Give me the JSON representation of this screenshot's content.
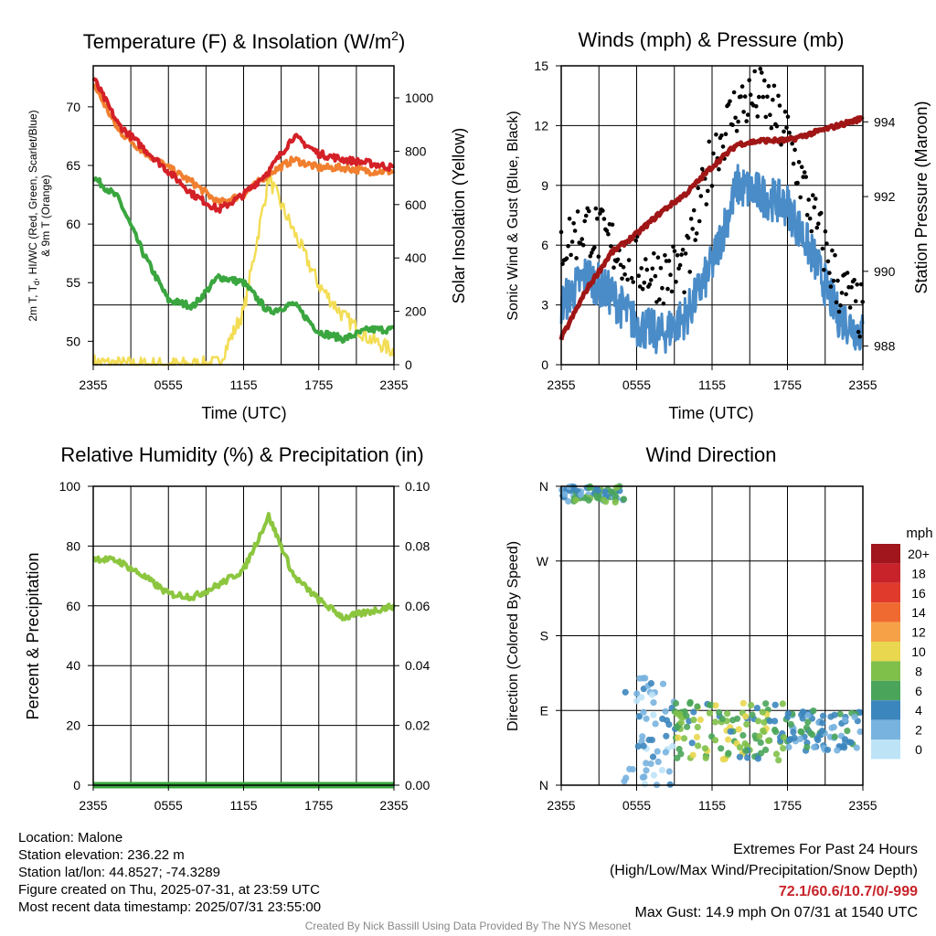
{
  "x_ticks": [
    "2355",
    "0555",
    "1155",
    "1755",
    "2355"
  ],
  "panels": {
    "temp": {
      "title": "Temperature (F) & Insolation (W/m",
      "title_sup": "2",
      "title_end": ")",
      "ylabel_left_line1": "2m T, T",
      "ylabel_left_sub": "d",
      "ylabel_left_line1b": ", HI/WC (Red, Green, Scarlet/Blue)",
      "ylabel_left_line2": "& 9m T (Orange)",
      "ylabel_right": "Solar Insolation (Yellow)",
      "xlabel": "Time (UTC)",
      "yticks_left": [
        "50",
        "55",
        "60",
        "65",
        "70"
      ],
      "yticks_right": [
        "0",
        "200",
        "400",
        "600",
        "800",
        "1000"
      ]
    },
    "wind": {
      "title": "Winds (mph) & Pressure (mb)",
      "ylabel_left": "Sonic Wind & Gust (Blue, Black)",
      "ylabel_right": "Station Pressure (Maroon)",
      "xlabel": "Time (UTC)",
      "yticks_left": [
        "0",
        "3",
        "6",
        "9",
        "12",
        "15"
      ],
      "yticks_right": [
        "988",
        "990",
        "992",
        "994"
      ]
    },
    "rh": {
      "title": "Relative Humidity (%) & Precipitation (in)",
      "ylabel_left": "Percent & Precipitation",
      "yticks_left": [
        "0",
        "20",
        "40",
        "60",
        "80",
        "100"
      ],
      "yticks_right": [
        "0.00",
        "0.02",
        "0.04",
        "0.06",
        "0.08",
        "0.10"
      ]
    },
    "dir": {
      "title": "Wind Direction",
      "ylabel_left": "Direction (Colored By Speed)",
      "yticks_left": [
        "N",
        "E",
        "S",
        "W",
        "N"
      ],
      "legend_title": "mph",
      "legend_labels": [
        "20+",
        "18",
        "16",
        "14",
        "12",
        "10",
        "8",
        "6",
        "4",
        "2",
        "0"
      ],
      "legend_colors": [
        "#a0161c",
        "#c8232a",
        "#e03a2d",
        "#ef6a30",
        "#f6a148",
        "#e8d74f",
        "#7fc04a",
        "#4aa55a",
        "#3c86be",
        "#78b3df",
        "#bde3f7"
      ]
    }
  },
  "info": {
    "location": "Location: Malone",
    "elevation": "Station elevation: 236.22 m",
    "latlon": "Station lat/lon: 44.8527; -74.3289",
    "created": "Figure created on Thu, 2025-07-31, at 23:59 UTC",
    "recent": "Most recent data timestamp: 2025/07/31 23:55:00"
  },
  "extremes": {
    "heading": "Extremes For Past 24 Hours",
    "subheading": "(High/Low/Max Wind/Precipitation/Snow Depth)",
    "values": "72.1/60.6/10.7/0/-999",
    "values_color": "#c8232a",
    "gust": "Max Gust: 14.9 mph On 07/31 at 1540 UTC"
  },
  "credit": "Created By Nick Bassill Using Data Provided By The NYS Mesonet",
  "chart_data": [
    {
      "type": "line",
      "title": "Temperature (F) & Insolation (W/m2)",
      "xlabel": "Time (UTC)",
      "x_hours": [
        0,
        2,
        4,
        6,
        8,
        10,
        12,
        14,
        16,
        18,
        20,
        22,
        24
      ],
      "ylim_left": [
        48,
        73.5
      ],
      "ylim_right": [
        0,
        1120
      ],
      "series": [
        {
          "name": "2m T (Red)",
          "axis": "left",
          "color": "#d42027",
          "values": [
            72.5,
            68.5,
            66.5,
            64.5,
            62.5,
            61.2,
            62.5,
            64.5,
            67.5,
            66.0,
            65.5,
            65.2,
            64.8
          ]
        },
        {
          "name": "9m T (Orange)",
          "axis": "left",
          "color": "#f07f2f",
          "values": [
            72.0,
            68.0,
            66.2,
            64.8,
            63.5,
            61.8,
            62.5,
            64.3,
            65.5,
            64.8,
            64.8,
            64.5,
            64.5
          ]
        },
        {
          "name": "Td (Green)",
          "axis": "left",
          "color": "#3aa63f",
          "values": [
            64.0,
            62.2,
            57.5,
            53.5,
            53.0,
            55.5,
            55.0,
            52.5,
            53.2,
            50.8,
            50.2,
            51.0,
            51.0
          ]
        },
        {
          "name": "Solar Insolation (Yellow)",
          "axis": "right",
          "color": "#f3dd55",
          "values": [
            10,
            2,
            0,
            0,
            0,
            5,
            200,
            700,
            500,
            300,
            180,
            100,
            50
          ]
        }
      ]
    },
    {
      "type": "line",
      "title": "Winds (mph) & Pressure (mb)",
      "xlabel": "Time (UTC)",
      "x_hours": [
        0,
        2,
        4,
        6,
        8,
        10,
        12,
        14,
        16,
        18,
        20,
        22,
        24
      ],
      "ylim_left": [
        0,
        15
      ],
      "ylim_right": [
        987.5,
        995.5
      ],
      "series": [
        {
          "name": "Sonic Wind (Blue)",
          "axis": "left",
          "color": "#4a8cc8",
          "values": [
            3.0,
            4.5,
            3.5,
            2.0,
            1.5,
            2.5,
            5.0,
            9.0,
            8.5,
            8.0,
            5.5,
            2.5,
            1.5
          ]
        },
        {
          "name": "Gust (Black)",
          "axis": "left",
          "color": "#000000",
          "values": [
            6.0,
            7.0,
            6.0,
            5.0,
            4.5,
            5.0,
            10.5,
            13.0,
            13.5,
            11.5,
            7.5,
            4.0,
            2.5
          ]
        },
        {
          "name": "Station Pressure (Maroon)",
          "axis": "right",
          "color": "#a01616",
          "values": [
            988.2,
            989.5,
            990.5,
            991.0,
            991.6,
            992.1,
            992.8,
            993.4,
            993.5,
            993.5,
            993.7,
            993.9,
            994.1
          ]
        }
      ]
    },
    {
      "type": "line",
      "title": "Relative Humidity (%) & Precipitation (in)",
      "x_hours": [
        0,
        2,
        4,
        6,
        8,
        10,
        12,
        14,
        16,
        18,
        20,
        22,
        24
      ],
      "ylim_left": [
        0,
        100
      ],
      "ylim_right": [
        0,
        0.1
      ],
      "series": [
        {
          "name": "Relative Humidity",
          "axis": "left",
          "color": "#8cc63f",
          "values": [
            76,
            75,
            70,
            64,
            63,
            67,
            72,
            90,
            70,
            62,
            56,
            58,
            60
          ]
        },
        {
          "name": "Precipitation",
          "axis": "right",
          "color": "#3aa63f",
          "values": [
            0,
            0,
            0,
            0,
            0,
            0,
            0,
            0,
            0,
            0,
            0,
            0,
            0
          ]
        }
      ]
    },
    {
      "type": "scatter",
      "title": "Wind Direction",
      "x_hours_range": [
        0,
        24
      ],
      "y_categories": [
        "N",
        "E",
        "S",
        "W",
        "N"
      ],
      "note": "Points colored by wind speed (mph)",
      "clusters": [
        {
          "hours": [
            0,
            5
          ],
          "dir_deg": [
            340,
            360
          ],
          "speed_mph": [
            2,
            8
          ]
        },
        {
          "hours": [
            5,
            9
          ],
          "dir_deg": [
            0,
            130
          ],
          "speed_mph": [
            0,
            4
          ]
        },
        {
          "hours": [
            9,
            18
          ],
          "dir_deg": [
            30,
            100
          ],
          "speed_mph": [
            4,
            10
          ]
        },
        {
          "hours": [
            18,
            24
          ],
          "dir_deg": [
            40,
            90
          ],
          "speed_mph": [
            2,
            6
          ]
        }
      ]
    }
  ]
}
